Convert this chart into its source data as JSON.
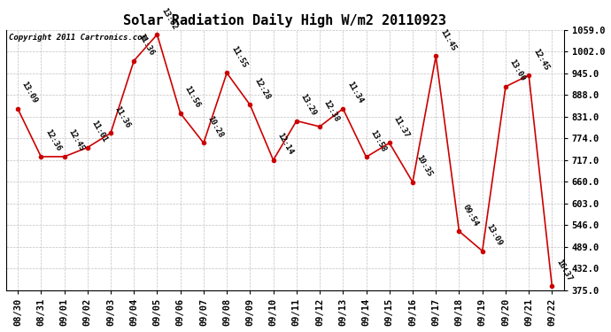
{
  "title": "Solar Radiation Daily High W/m2 20110923",
  "copyright": "Copyright 2011 Cartronics.com",
  "dates": [
    "08/30",
    "08/31",
    "09/01",
    "09/02",
    "09/03",
    "09/04",
    "09/05",
    "09/06",
    "09/07",
    "09/08",
    "09/09",
    "09/10",
    "09/11",
    "09/12",
    "09/13",
    "09/14",
    "09/15",
    "09/16",
    "09/17",
    "09/18",
    "09/19",
    "09/20",
    "09/21",
    "09/22"
  ],
  "values": [
    852,
    726,
    726,
    750,
    788,
    978,
    1047,
    840,
    762,
    946,
    862,
    717,
    820,
    805,
    852,
    725,
    762,
    659,
    990,
    530,
    478,
    910,
    940,
    385
  ],
  "labels": [
    "13:09",
    "12:36",
    "12:45",
    "11:01",
    "11:36",
    "11:36",
    "13:02",
    "11:56",
    "10:28",
    "11:55",
    "12:28",
    "12:14",
    "13:29",
    "12:38",
    "11:34",
    "13:58",
    "11:37",
    "10:35",
    "11:45",
    "09:54",
    "13:09",
    "13:00",
    "12:45",
    "16:37"
  ],
  "line_color": "#cc0000",
  "marker_color": "#cc0000",
  "bg_color": "#ffffff",
  "plot_bg_color": "#ffffff",
  "grid_color": "#b0b0b0",
  "ylim_min": 375.0,
  "ylim_max": 1059.0,
  "yticks": [
    375.0,
    432.0,
    489.0,
    546.0,
    603.0,
    660.0,
    717.0,
    774.0,
    831.0,
    888.0,
    945.0,
    1002.0,
    1059.0
  ],
  "title_fontsize": 11,
  "label_fontsize": 6.5,
  "tick_fontsize": 7.5,
  "copyright_fontsize": 6.5
}
